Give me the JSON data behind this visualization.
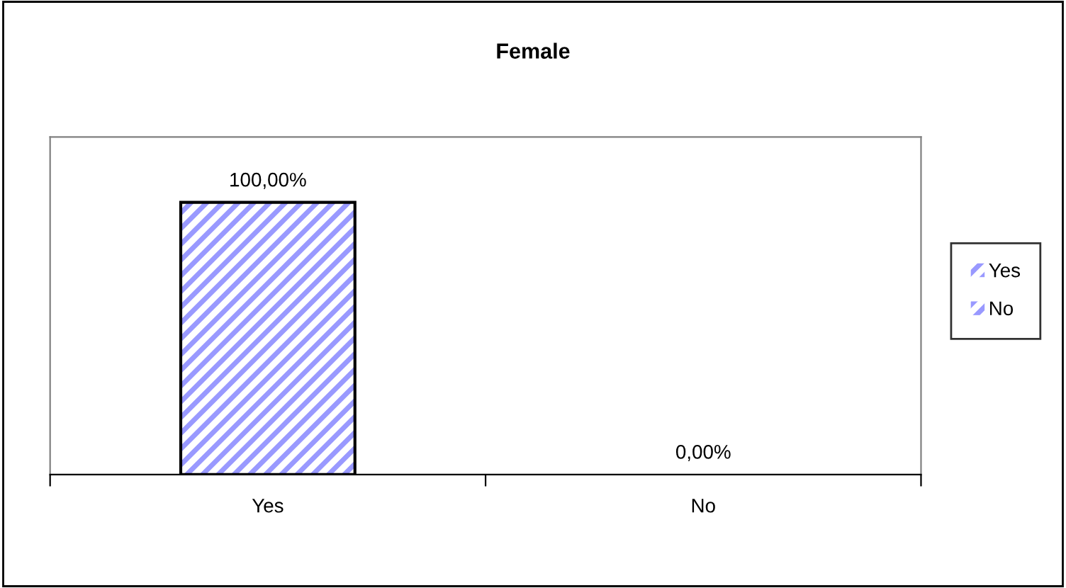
{
  "chart_data": {
    "type": "bar",
    "title": "Female",
    "categories": [
      "Yes",
      "No"
    ],
    "ylim": [
      0,
      124
    ],
    "tick_labels": "x",
    "legend": "right",
    "grid": false,
    "series": [
      {
        "name": "Yes",
        "color": "#9999ff",
        "values": [
          100,
          null
        ],
        "value_labels": [
          "100,00%",
          null
        ]
      },
      {
        "name": "No",
        "color": "#9999ff",
        "values": [
          null,
          0
        ],
        "value_labels": [
          null,
          "0,00%"
        ]
      }
    ]
  }
}
